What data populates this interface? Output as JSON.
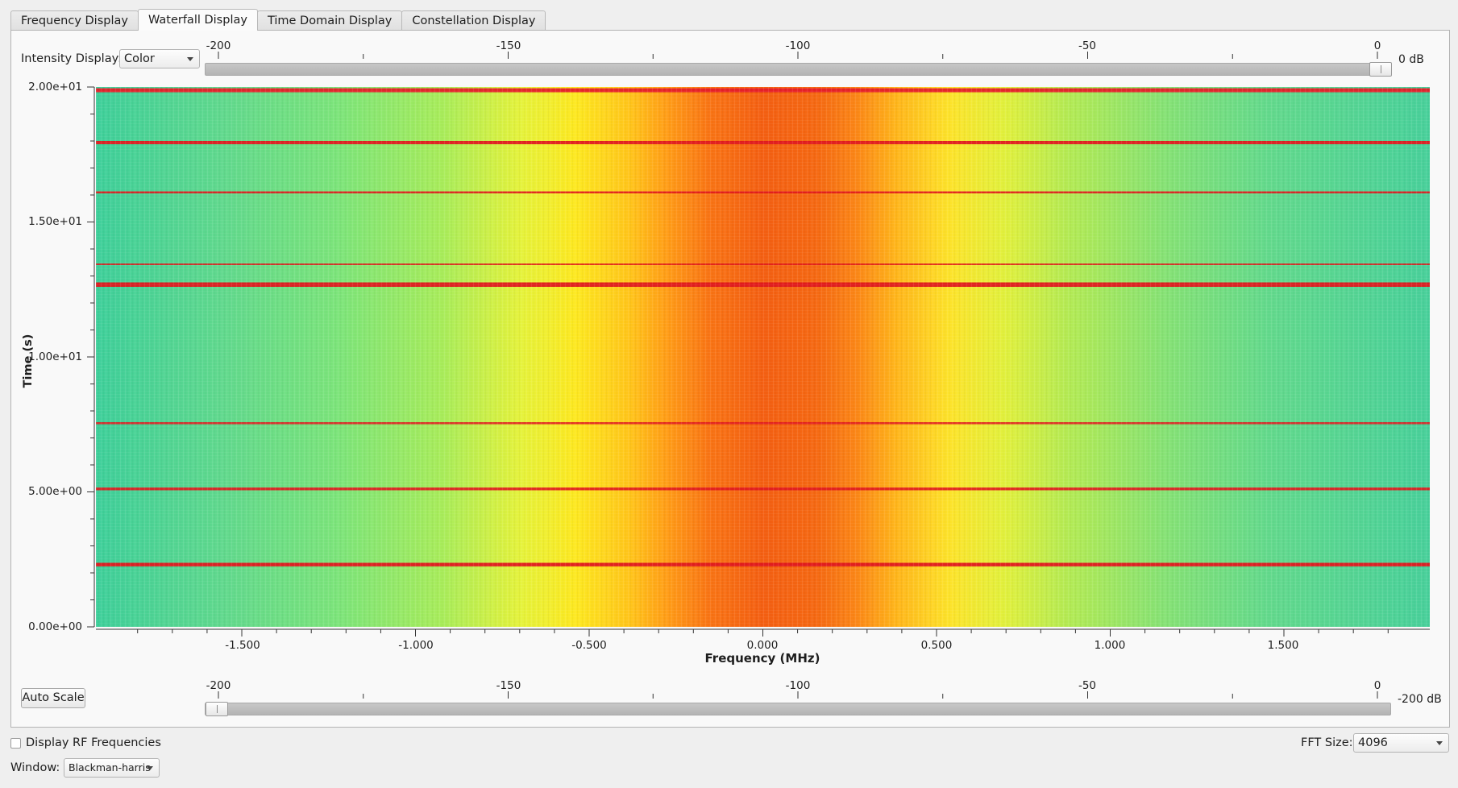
{
  "tabs": [
    {
      "label": "Frequency Display",
      "active": false
    },
    {
      "label": "Waterfall Display",
      "active": true
    },
    {
      "label": "Time Domain Display",
      "active": false
    },
    {
      "label": "Constellation Display",
      "active": false
    }
  ],
  "intensity": {
    "label": "Intensity Display:",
    "value": "Color"
  },
  "top_slider": {
    "ticks": [
      "-200",
      "-150",
      "-100",
      "-50",
      "0"
    ],
    "value_label": "0 dB",
    "value_db": 0,
    "range_db": [
      -200,
      0
    ]
  },
  "bottom_slider": {
    "ticks": [
      "-200",
      "-150",
      "-100",
      "-50",
      "0"
    ],
    "value_label": "-200 dB",
    "value_db": -200,
    "range_db": [
      -200,
      0
    ]
  },
  "auto_scale_label": "Auto Scale",
  "display_rf": {
    "label": "Display RF Frequencies",
    "checked": false
  },
  "fft": {
    "label": "FFT Size:",
    "value": "4096"
  },
  "window": {
    "label": "Window:",
    "value": "Blackman-harris"
  },
  "chart_data": {
    "type": "heatmap",
    "xlabel": "Frequency (MHz)",
    "ylabel": "Time (s)",
    "xlim": [
      -1.92,
      1.92
    ],
    "ylim": [
      0,
      20
    ],
    "x_ticks": [
      "-1.500",
      "-1.000",
      "-0.500",
      "0.000",
      "0.500",
      "1.000",
      "1.500"
    ],
    "x_tick_values": [
      -1.5,
      -1.0,
      -0.5,
      0.0,
      0.5,
      1.0,
      1.5
    ],
    "y_ticks": [
      "0.00e+00",
      "5.00e+00",
      "1.00e+01",
      "1.50e+01",
      "2.00e+01"
    ],
    "y_tick_values": [
      0,
      5,
      10,
      15,
      20
    ],
    "colormap": "color",
    "dominant_colors": {
      "background": "#4cd598",
      "center": "#f45f12",
      "bands": "#e21c24"
    }
  }
}
